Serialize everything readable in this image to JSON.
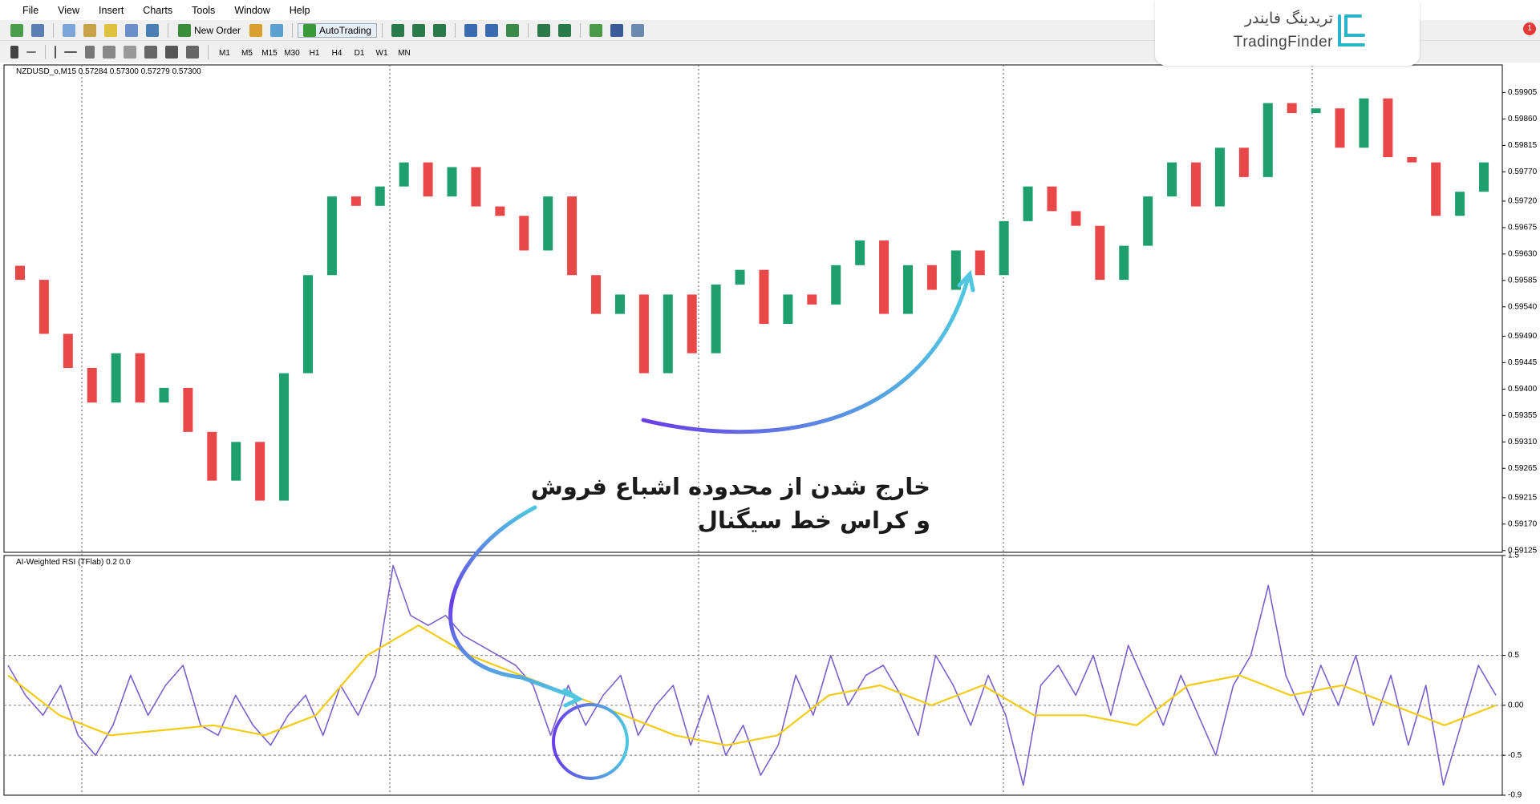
{
  "menu": [
    "File",
    "View",
    "Insert",
    "Charts",
    "Tools",
    "Window",
    "Help"
  ],
  "toolbar": {
    "new_order": "New Order",
    "auto_trading": "AutoTrading"
  },
  "timeframes": [
    "M1",
    "M5",
    "M15",
    "M30",
    "H1",
    "H4",
    "D1",
    "W1",
    "MN"
  ],
  "logo": {
    "fa": "تریدینگ فایندر",
    "en": "TradingFinder"
  },
  "notification_count": "1",
  "chart_header": "NZDUSD_o,M15  0.57284 0.57300 0.57279 0.57300",
  "indicator_header": "AI-Weighted RSI (TFlab) 0.2 0.0",
  "annotation": [
    "خارج شدن از محدوده اشباع فروش",
    "و کراس خط سیگنال"
  ],
  "chart_data": [
    {
      "type": "candlestick",
      "up_color": "#1f9e6e",
      "down_color": "#e84848",
      "open": [
        0.5961,
        0.59586,
        0.59494,
        0.59436,
        0.59377,
        0.59461,
        0.59377,
        0.59402,
        0.59327,
        0.59244,
        0.5931,
        0.5921,
        0.59427,
        0.59594,
        0.59728,
        0.59712,
        0.59745,
        0.59786,
        0.59728,
        0.59778,
        0.59711,
        0.59695,
        0.59636,
        0.59728,
        0.59594,
        0.59528,
        0.59561,
        0.59427,
        0.59561,
        0.59461,
        0.59578,
        0.59603,
        0.59511,
        0.59561,
        0.59544,
        0.59611,
        0.59653,
        0.59528,
        0.59611,
        0.59569,
        0.59636,
        0.59594,
        0.59686,
        0.59745,
        0.59703,
        0.59678,
        0.59586,
        0.59644,
        0.59728,
        0.59786,
        0.59711,
        0.59811,
        0.59761,
        0.59887,
        0.5987,
        0.59878,
        0.59811,
        0.59895,
        0.59795,
        0.59786,
        0.59695,
        0.59736
      ],
      "close": [
        0.59586,
        0.59494,
        0.59436,
        0.59377,
        0.59461,
        0.59377,
        0.59402,
        0.59327,
        0.59244,
        0.5931,
        0.5921,
        0.59427,
        0.59594,
        0.59728,
        0.59712,
        0.59745,
        0.59786,
        0.59728,
        0.59778,
        0.59711,
        0.59695,
        0.59636,
        0.59728,
        0.59594,
        0.59528,
        0.59561,
        0.59427,
        0.59561,
        0.59461,
        0.59578,
        0.59603,
        0.59511,
        0.59561,
        0.59544,
        0.59611,
        0.59653,
        0.59528,
        0.59611,
        0.59569,
        0.59636,
        0.59594,
        0.59686,
        0.59745,
        0.59703,
        0.59678,
        0.59586,
        0.59644,
        0.59728,
        0.59786,
        0.59711,
        0.59811,
        0.59761,
        0.59887,
        0.5987,
        0.59878,
        0.59811,
        0.59895,
        0.59795,
        0.59786,
        0.59695,
        0.59736,
        0.59786
      ],
      "ylim": [
        0.59122,
        0.59952
      ],
      "yticks": [
        0.59905,
        {
          "value": 0.5986,
          "label": "0.59860"
        },
        0.59815,
        {
          "value": 0.5977,
          "label": "0.59770"
        },
        {
          "value": 0.5972,
          "label": "0.59720"
        },
        0.59675,
        {
          "value": 0.5963,
          "label": "0.59630"
        },
        0.59585,
        {
          "value": 0.5954,
          "label": "0.59540"
        },
        {
          "value": 0.5949,
          "label": "0.59490"
        },
        0.59445,
        {
          "value": 0.594,
          "label": "0.59400"
        },
        0.59355,
        {
          "value": 0.5931,
          "label": "0.59310"
        },
        0.59265,
        0.59215,
        {
          "value": 0.5917,
          "label": "0.59170"
        },
        0.59125
      ]
    },
    {
      "type": "line",
      "grid": true,
      "series": [
        {
          "color": "#7b61c9",
          "values": [
            0.4,
            0.1,
            -0.1,
            0.2,
            -0.3,
            -0.5,
            -0.2,
            0.3,
            -0.1,
            0.2,
            0.4,
            -0.2,
            -0.3,
            0.1,
            -0.2,
            -0.4,
            -0.1,
            0.1,
            -0.3,
            0.2,
            -0.1,
            0.3,
            1.4,
            0.9,
            0.8,
            0.9,
            0.7,
            0.6,
            0.5,
            0.4,
            0.2,
            -0.3,
            0.2,
            -0.2,
            0.1,
            0.3,
            -0.3,
            0.0,
            0.2,
            -0.4,
            0.1,
            -0.5,
            -0.2,
            -0.7,
            -0.4,
            0.3,
            -0.1,
            0.5,
            0.0,
            0.3,
            0.4,
            0.1,
            -0.3,
            0.5,
            0.2,
            -0.2,
            0.3,
            -0.1,
            -0.8,
            0.2,
            0.4,
            0.1,
            0.5,
            -0.1,
            0.6,
            0.2,
            -0.2,
            0.3,
            -0.1,
            -0.5,
            0.2,
            0.5,
            1.2,
            0.3,
            -0.1,
            0.4,
            0.0,
            0.5,
            -0.2,
            0.3,
            -0.4,
            0.2,
            -0.8,
            -0.2,
            0.4,
            0.1
          ]
        },
        {
          "color": "#f2cc14",
          "values": [
            0.3,
            -0.1,
            -0.3,
            -0.25,
            -0.2,
            -0.3,
            -0.1,
            0.5,
            0.8,
            0.5,
            0.3,
            0.1,
            -0.1,
            -0.3,
            -0.4,
            -0.3,
            0.1,
            0.2,
            0.0,
            0.2,
            -0.1,
            -0.1,
            -0.2,
            0.2,
            0.3,
            0.1,
            0.2,
            0.0,
            -0.2,
            0.0
          ]
        }
      ],
      "ylim": [
        -0.9,
        1.5
      ],
      "yticks": [
        1.5,
        0.5,
        {
          "value": 0,
          "label": "0.00"
        },
        -0.5,
        -0.9
      ]
    }
  ]
}
